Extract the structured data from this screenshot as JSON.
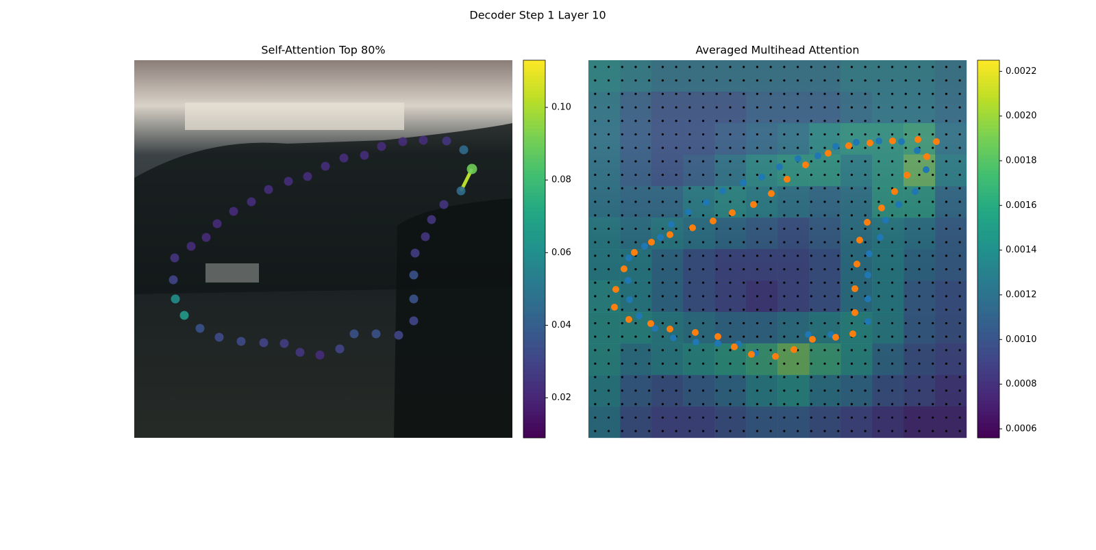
{
  "title": "Decoder Step 1 Layer 10",
  "chart_data": [
    {
      "type": "scatter",
      "title": "Self-Attention Top 80%",
      "x": [
        481,
        456,
        422,
        392,
        361,
        336,
        306,
        279,
        253,
        225,
        196,
        171,
        145,
        121,
        105,
        83,
        59,
        57,
        60,
        73,
        96,
        124,
        156,
        189,
        219,
        242,
        271,
        300,
        321,
        353,
        386,
        408,
        408,
        408,
        410,
        425,
        434,
        452,
        477,
        493
      ],
      "y": [
        131,
        118,
        117,
        119,
        126,
        139,
        143,
        155,
        170,
        177,
        189,
        207,
        221,
        239,
        259,
        272,
        289,
        321,
        349,
        373,
        392,
        405,
        411,
        413,
        414,
        427,
        431,
        422,
        400,
        400,
        402,
        381,
        349,
        314,
        282,
        258,
        233,
        211,
        191,
        159
      ],
      "values": [
        0.045,
        0.025,
        0.022,
        0.022,
        0.022,
        0.022,
        0.022,
        0.022,
        0.022,
        0.022,
        0.022,
        0.022,
        0.022,
        0.022,
        0.022,
        0.022,
        0.025,
        0.03,
        0.06,
        0.065,
        0.035,
        0.033,
        0.033,
        0.03,
        0.028,
        0.025,
        0.022,
        0.03,
        0.035,
        0.035,
        0.03,
        0.03,
        0.035,
        0.035,
        0.028,
        0.025,
        0.025,
        0.025,
        0.045,
        0.09
      ],
      "colorbar": {
        "lim": [
          0.009,
          0.113
        ],
        "ticks": [
          0.02,
          0.04,
          0.06,
          0.08,
          {
            "value": 0.1,
            "label": "0.10"
          }
        ]
      }
    },
    {
      "type": "heatmap",
      "title": "Averaged Multihead Attention",
      "z": [
        [
          0.0014,
          0.0013,
          0.0012,
          0.0012,
          0.0012,
          0.0012,
          0.0012,
          0.0012,
          0.0013,
          0.0013,
          0.0013,
          0.0012
        ],
        [
          0.0013,
          0.0011,
          0.001,
          0.001,
          0.001,
          0.0011,
          0.0011,
          0.0011,
          0.0012,
          0.0013,
          0.0013,
          0.0012
        ],
        [
          0.0013,
          0.0011,
          0.001,
          0.001,
          0.0011,
          0.0012,
          0.0013,
          0.0015,
          0.0016,
          0.0016,
          0.0017,
          0.0013
        ],
        [
          0.0013,
          0.0011,
          0.001,
          0.0011,
          0.0013,
          0.0015,
          0.0016,
          0.0016,
          0.0014,
          0.0016,
          0.0019,
          0.0014
        ],
        [
          0.0013,
          0.0012,
          0.0012,
          0.0014,
          0.0015,
          0.0014,
          0.0013,
          0.0012,
          0.0013,
          0.0016,
          0.0016,
          0.0012
        ],
        [
          0.0014,
          0.0013,
          0.0014,
          0.0013,
          0.0012,
          0.0011,
          0.001,
          0.0011,
          0.0013,
          0.0014,
          0.0013,
          0.0011
        ],
        [
          0.0014,
          0.0014,
          0.0012,
          0.001,
          0.0009,
          0.0009,
          0.0009,
          0.001,
          0.0013,
          0.0014,
          0.0012,
          0.0011
        ],
        [
          0.0015,
          0.0014,
          0.0012,
          0.001,
          0.0009,
          0.0008,
          0.0009,
          0.001,
          0.0013,
          0.0014,
          0.0011,
          0.001
        ],
        [
          0.0015,
          0.0015,
          0.0014,
          0.0013,
          0.0012,
          0.0012,
          0.0013,
          0.0014,
          0.0015,
          0.0014,
          0.0011,
          0.001
        ],
        [
          0.0015,
          0.0013,
          0.0014,
          0.0015,
          0.0016,
          0.0017,
          0.0019,
          0.0017,
          0.0015,
          0.0012,
          0.001,
          0.0009
        ],
        [
          0.0014,
          0.0011,
          0.001,
          0.0011,
          0.0012,
          0.0014,
          0.0015,
          0.0013,
          0.0012,
          0.001,
          0.0009,
          0.0008
        ],
        [
          0.0013,
          0.001,
          0.0009,
          0.0009,
          0.001,
          0.0011,
          0.0011,
          0.001,
          0.0009,
          0.0008,
          0.0007,
          0.0007
        ]
      ],
      "series": [
        {
          "color": "#1f77b4",
          "x": [
            59,
            58,
            60,
            74,
            97,
            124,
            157,
            189,
            219,
            244,
            321,
            354,
            408,
            408,
            408,
            410,
            426,
            434,
            453,
            477,
            493,
            480,
            457,
            424,
            391,
            361,
            335,
            306,
            279,
            253,
            226,
            196,
            172,
            146,
            121,
            105,
            82
          ],
          "y": [
            289,
            322,
            350,
            374,
            392,
            406,
            412,
            414,
            415,
            428,
            401,
            401,
            382,
            349,
            314,
            283,
            259,
            234,
            211,
            192,
            160,
            132,
            119,
            118,
            120,
            126,
            140,
            144,
            156,
            171,
            179,
            191,
            208,
            222,
            240,
            259,
            272
          ]
        },
        {
          "color": "#ff7f0e",
          "x": [
            38,
            40,
            52,
            67,
            92,
            119,
            152,
            182,
            210,
            241,
            267,
            290,
            317,
            350,
            380,
            411,
            444,
            481,
            508,
            494,
            465,
            447,
            428,
            407,
            396,
            392,
            389,
            389,
            386,
            361,
            327,
            300,
            273,
            238,
            213,
            189,
            156,
            119,
            91,
            59
          ],
          "y": [
            361,
            335,
            305,
            281,
            266,
            255,
            245,
            235,
            223,
            211,
            195,
            174,
            153,
            136,
            125,
            121,
            118,
            116,
            119,
            141,
            168,
            192,
            216,
            237,
            263,
            298,
            334,
            369,
            400,
            405,
            408,
            423,
            433,
            430,
            419,
            404,
            398,
            393,
            385,
            379
          ]
        }
      ],
      "colorbar": {
        "lim": [
          0.00056,
          0.00225
        ],
        "ticks": [
          0.0006,
          0.0008,
          {
            "value": 0.001,
            "label": "0.0010"
          },
          0.0012,
          0.0014,
          0.0016,
          0.0018,
          {
            "value": 0.002,
            "label": "0.0020"
          },
          0.0022
        ]
      }
    }
  ]
}
